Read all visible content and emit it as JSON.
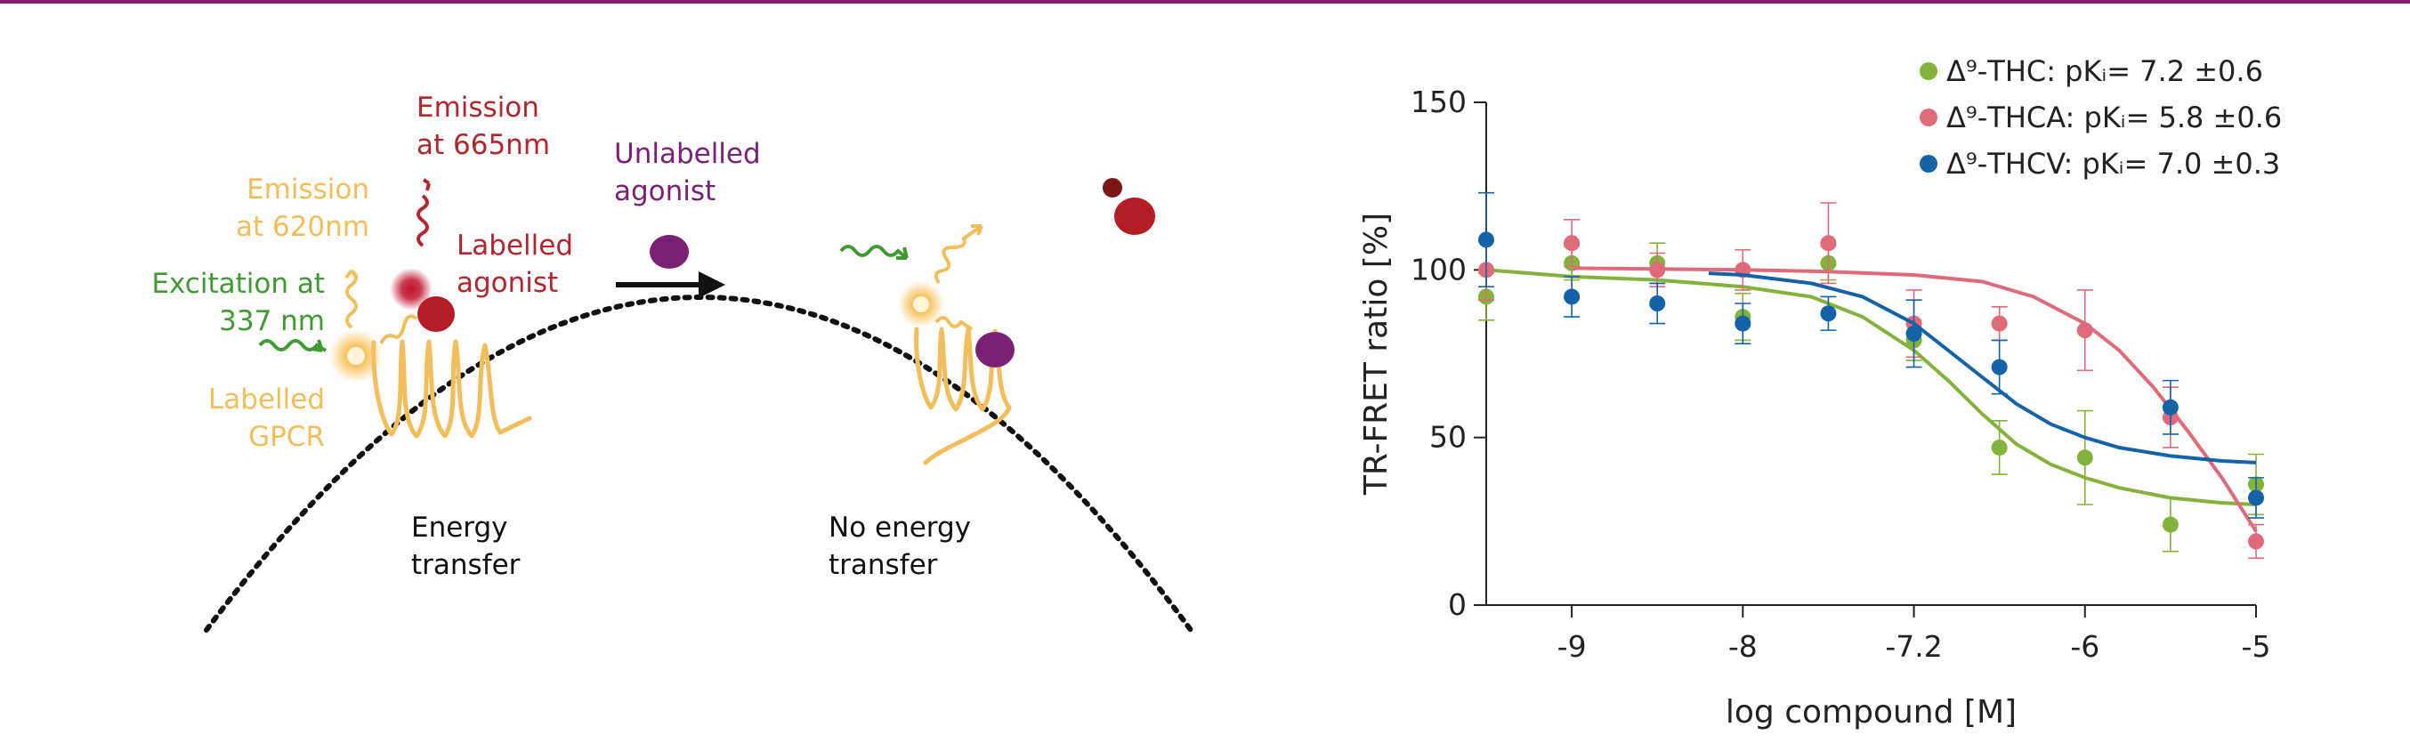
{
  "schematic": {
    "emission_620": [
      "Emission",
      "at 620nm"
    ],
    "excitation": [
      "Excitation at",
      "337 nm"
    ],
    "labelled_gpcr": [
      "Labelled",
      "GPCR"
    ],
    "emission_665": [
      "Emission",
      "at 665nm"
    ],
    "labelled_agonist": [
      "Labelled",
      "agonist"
    ],
    "unlabelled_agonist": [
      "Unlabelled",
      "agonist"
    ],
    "energy_transfer": [
      "Energy",
      "transfer"
    ],
    "no_energy_transfer": [
      "No energy",
      "transfer"
    ],
    "colors": {
      "orange": "#f2be5c",
      "green": "#3f9a32",
      "red": "#b3262e",
      "purple": "#7b2074"
    }
  },
  "chart_data": {
    "type": "scatter",
    "xlabel": "log compound [M]",
    "ylabel": "TR-FRET ratio [%]",
    "xlim": [
      -9.5,
      -5
    ],
    "ylim": [
      0,
      150
    ],
    "xticks": [
      -9,
      -8,
      -7.2,
      -6,
      -5
    ],
    "yticks": [
      0,
      50,
      100,
      150
    ],
    "legend": "top-right",
    "grid": false,
    "series": [
      {
        "name": "Δ⁹-THC: pKᵢ= 7.2 ±0.6",
        "color": "#83b33a",
        "points": [
          {
            "x": -9.5,
            "y": 92,
            "err": 7
          },
          {
            "x": -9,
            "y": 102,
            "err": 5
          },
          {
            "x": -8.5,
            "y": 102,
            "err": 6
          },
          {
            "x": -8,
            "y": 86,
            "err": 7
          },
          {
            "x": -7.5,
            "y": 102,
            "err": 5
          },
          {
            "x": -7,
            "y": 79,
            "err": 6
          },
          {
            "x": -6.5,
            "y": 47,
            "err": 8
          },
          {
            "x": -6,
            "y": 44,
            "err": 14
          },
          {
            "x": -5.5,
            "y": 24,
            "err": 8
          },
          {
            "x": -5,
            "y": 36,
            "err": 9
          }
        ],
        "curve": [
          [
            -9.5,
            100
          ],
          [
            -9,
            98
          ],
          [
            -8.5,
            97
          ],
          [
            -8,
            95
          ],
          [
            -7.6,
            92
          ],
          [
            -7.3,
            86
          ],
          [
            -7,
            76
          ],
          [
            -6.8,
            67
          ],
          [
            -6.6,
            57
          ],
          [
            -6.4,
            48
          ],
          [
            -6.2,
            42
          ],
          [
            -6,
            38
          ],
          [
            -5.8,
            35
          ],
          [
            -5.5,
            32
          ],
          [
            -5.2,
            30.5
          ],
          [
            -5,
            30
          ]
        ]
      },
      {
        "name": "Δ⁹-THCA: pKᵢ= 5.8 ±0.6",
        "color": "#e06a7a",
        "points": [
          {
            "x": -9.5,
            "y": 100,
            "err": 9
          },
          {
            "x": -9,
            "y": 108,
            "err": 7
          },
          {
            "x": -8.5,
            "y": 100,
            "err": 5
          },
          {
            "x": -8,
            "y": 100,
            "err": 6
          },
          {
            "x": -7.5,
            "y": 108,
            "err": 12
          },
          {
            "x": -7,
            "y": 84,
            "err": 10
          },
          {
            "x": -6.5,
            "y": 84,
            "err": 5
          },
          {
            "x": -6,
            "y": 82,
            "err": 12
          },
          {
            "x": -5.5,
            "y": 56,
            "err": 9
          },
          {
            "x": -5,
            "y": 19,
            "err": 5
          }
        ],
        "curve": [
          [
            -9,
            100.5
          ],
          [
            -8.5,
            100.3
          ],
          [
            -8,
            100
          ],
          [
            -7.5,
            99.5
          ],
          [
            -7,
            98.5
          ],
          [
            -6.6,
            96.5
          ],
          [
            -6.3,
            92
          ],
          [
            -6,
            84
          ],
          [
            -5.8,
            76
          ],
          [
            -5.6,
            65
          ],
          [
            -5.4,
            52
          ],
          [
            -5.2,
            38
          ],
          [
            -5,
            22
          ]
        ]
      },
      {
        "name": "Δ⁹-THCV: pKᵢ= 7.0 ±0.3",
        "color": "#1463a8",
        "points": [
          {
            "x": -9.5,
            "y": 109,
            "err": 14
          },
          {
            "x": -9,
            "y": 92,
            "err": 6
          },
          {
            "x": -8.5,
            "y": 90,
            "err": 6
          },
          {
            "x": -8,
            "y": 84,
            "err": 6
          },
          {
            "x": -7.5,
            "y": 87,
            "err": 5
          },
          {
            "x": -7,
            "y": 81,
            "err": 10
          },
          {
            "x": -6.5,
            "y": 71,
            "err": 8
          },
          {
            "x": -6,
            "y": null,
            "err": 0
          },
          {
            "x": -5.5,
            "y": 59,
            "err": 8
          },
          {
            "x": -5,
            "y": 32,
            "err": 6
          }
        ],
        "curve": [
          [
            -8.2,
            99
          ],
          [
            -8,
            98.5
          ],
          [
            -7.6,
            96
          ],
          [
            -7.3,
            92
          ],
          [
            -7,
            84
          ],
          [
            -6.8,
            76
          ],
          [
            -6.6,
            68
          ],
          [
            -6.4,
            60
          ],
          [
            -6.2,
            54
          ],
          [
            -6,
            50
          ],
          [
            -5.8,
            47
          ],
          [
            -5.5,
            44.5
          ],
          [
            -5.2,
            43
          ],
          [
            -5,
            42.5
          ]
        ]
      }
    ]
  }
}
